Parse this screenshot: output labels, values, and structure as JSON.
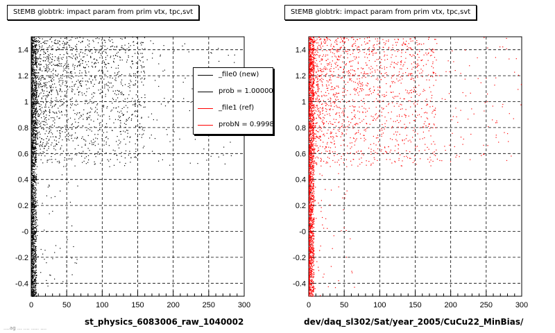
{
  "charts": [
    {
      "title": "StEMB globtrk: impact param from prim vtx, tpc,svt",
      "xlabel": "st_physics_6083006_raw_1040002",
      "xticks": [
        "0",
        "50",
        "100",
        "150",
        "200",
        "250",
        "300"
      ],
      "yticks": [
        "-0.4",
        "-0.2",
        "-0",
        "0.2",
        "0.4",
        "0.6",
        "0.8",
        "1",
        "1.2",
        "1.4"
      ],
      "color": "#000000"
    },
    {
      "title": "StEMB globtrk: impact param from prim vtx, tpc,svt",
      "xlabel": "dev/daq_sl302/Sat/year_2005/CuCu22_MinBias/",
      "xticks": [
        "0",
        "50",
        "100",
        "150",
        "200",
        "250",
        "300"
      ],
      "yticks": [
        "-0.4",
        "-0.2",
        "-0",
        "0.2",
        "0.4",
        "0.6",
        "0.8",
        "1",
        "1.2",
        "1.4"
      ],
      "color": "#ff0000"
    }
  ],
  "legend": {
    "entries": [
      {
        "label": "_file0 (new)",
        "color": "#000000"
      },
      {
        "label": "prob = 1.000000",
        "color": "#000000"
      },
      {
        "label": "_file1 (ref)",
        "color": "#ff0000"
      },
      {
        "label": "probN = 0.999800",
        "color": "#ff0000"
      }
    ]
  },
  "footer_note": "....ag ...  .... ..... ....",
  "chart_data": [
    {
      "type": "scatter",
      "title": "StEMB globtrk: impact param from prim vtx, tpc,svt",
      "xlabel": "st_physics_6083006_raw_1040002",
      "ylabel": "",
      "xlim": [
        0,
        300
      ],
      "ylim": [
        -0.5,
        1.5
      ],
      "grid": true,
      "legend_position": "top-right",
      "series": [
        {
          "name": "_file0 (new)",
          "color": "#000000"
        }
      ],
      "distribution": {
        "dense_band_x": [
          0,
          5
        ],
        "dense_band_y": [
          -0.5,
          1.5
        ],
        "upper_cluster_x": [
          5,
          160
        ],
        "upper_cluster_y": [
          0.5,
          1.5
        ],
        "sparse_tail_x": [
          160,
          300
        ]
      }
    },
    {
      "type": "scatter",
      "title": "StEMB globtrk: impact param from prim vtx, tpc,svt",
      "xlabel": "dev/daq_sl302/Sat/year_2005/CuCu22_MinBias/",
      "ylabel": "",
      "xlim": [
        0,
        300
      ],
      "ylim": [
        -0.5,
        1.5
      ],
      "grid": true,
      "series": [
        {
          "name": "_file1 (ref)",
          "color": "#ff0000"
        }
      ],
      "distribution": {
        "dense_band_x": [
          0,
          5
        ],
        "dense_band_y": [
          -0.5,
          1.5
        ],
        "upper_cluster_x": [
          5,
          180
        ],
        "upper_cluster_y": [
          0.5,
          1.5
        ],
        "sparse_tail_x": [
          180,
          300
        ]
      }
    }
  ]
}
